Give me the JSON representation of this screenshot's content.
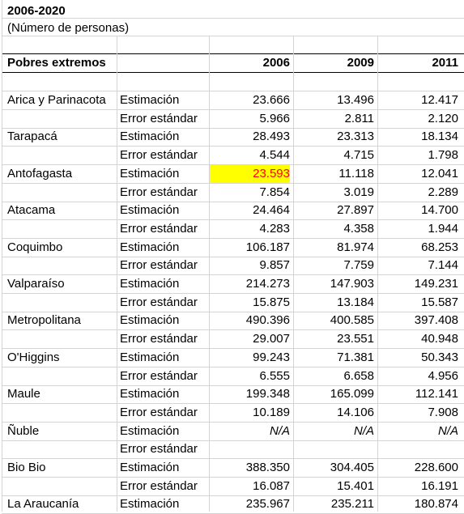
{
  "sheet": {
    "title": "2006-2020",
    "subtitle": "(Número de personas)",
    "header": {
      "label": "Pobres extremos",
      "years": [
        "2006",
        "2009",
        "2011"
      ]
    },
    "rows": [
      {
        "region": "Arica y Parinacota",
        "type": "Estimación",
        "values": [
          "23.666",
          "13.496",
          "12.417"
        ]
      },
      {
        "region": "",
        "type": "Error estándar",
        "values": [
          "5.966",
          "2.811",
          "2.120"
        ]
      },
      {
        "region": "Tarapacá",
        "type": "Estimación",
        "values": [
          "28.493",
          "23.313",
          "18.134"
        ]
      },
      {
        "region": "",
        "type": "Error estándar",
        "values": [
          "4.544",
          "4.715",
          "1.798"
        ]
      },
      {
        "region": "Antofagasta",
        "type": "Estimación",
        "values": [
          "23.593",
          "11.118",
          "12.041"
        ]
      },
      {
        "region": "",
        "type": "Error estándar",
        "values": [
          "7.854",
          "3.019",
          "2.289"
        ]
      },
      {
        "region": "Atacama",
        "type": "Estimación",
        "values": [
          "24.464",
          "27.897",
          "14.700"
        ]
      },
      {
        "region": "",
        "type": "Error estándar",
        "values": [
          "4.283",
          "4.358",
          "1.944"
        ]
      },
      {
        "region": "Coquimbo",
        "type": "Estimación",
        "values": [
          "106.187",
          "81.974",
          "68.253"
        ]
      },
      {
        "region": "",
        "type": "Error estándar",
        "values": [
          "9.857",
          "7.759",
          "7.144"
        ]
      },
      {
        "region": "Valparaíso",
        "type": "Estimación",
        "values": [
          "214.273",
          "147.903",
          "149.231"
        ]
      },
      {
        "region": "",
        "type": "Error estándar",
        "values": [
          "15.875",
          "13.184",
          "15.587"
        ]
      },
      {
        "region": "Metropolitana",
        "type": "Estimación",
        "values": [
          "490.396",
          "400.585",
          "397.408"
        ]
      },
      {
        "region": "",
        "type": "Error estándar",
        "values": [
          "29.007",
          "23.551",
          "40.948"
        ]
      },
      {
        "region": "O'Higgins",
        "type": "Estimación",
        "values": [
          "99.243",
          "71.381",
          "50.343"
        ]
      },
      {
        "region": "",
        "type": "Error estándar",
        "values": [
          "6.555",
          "6.658",
          "4.956"
        ]
      },
      {
        "region": "Maule",
        "type": "Estimación",
        "values": [
          "199.348",
          "165.099",
          "112.141"
        ]
      },
      {
        "region": "",
        "type": "Error estándar",
        "values": [
          "10.189",
          "14.106",
          "7.908"
        ]
      },
      {
        "region": "Ñuble",
        "type": "Estimación",
        "values": [
          "N/A",
          "N/A",
          "N/A"
        ]
      },
      {
        "region": "",
        "type": "Error estándar",
        "values": [
          "",
          "",
          ""
        ]
      },
      {
        "region": "Bio Bio",
        "type": "Estimación",
        "values": [
          "388.350",
          "304.405",
          "228.600"
        ]
      },
      {
        "region": "",
        "type": "Error estándar",
        "values": [
          "16.087",
          "15.401",
          "16.191"
        ]
      },
      {
        "region": "La Araucanía",
        "type": "Estimación",
        "values": [
          "235.967",
          "235.211",
          "180.874"
        ]
      }
    ],
    "highlight": {
      "row": 4,
      "col": 0,
      "fill": "#ffff00",
      "text": "#ff0000"
    }
  }
}
